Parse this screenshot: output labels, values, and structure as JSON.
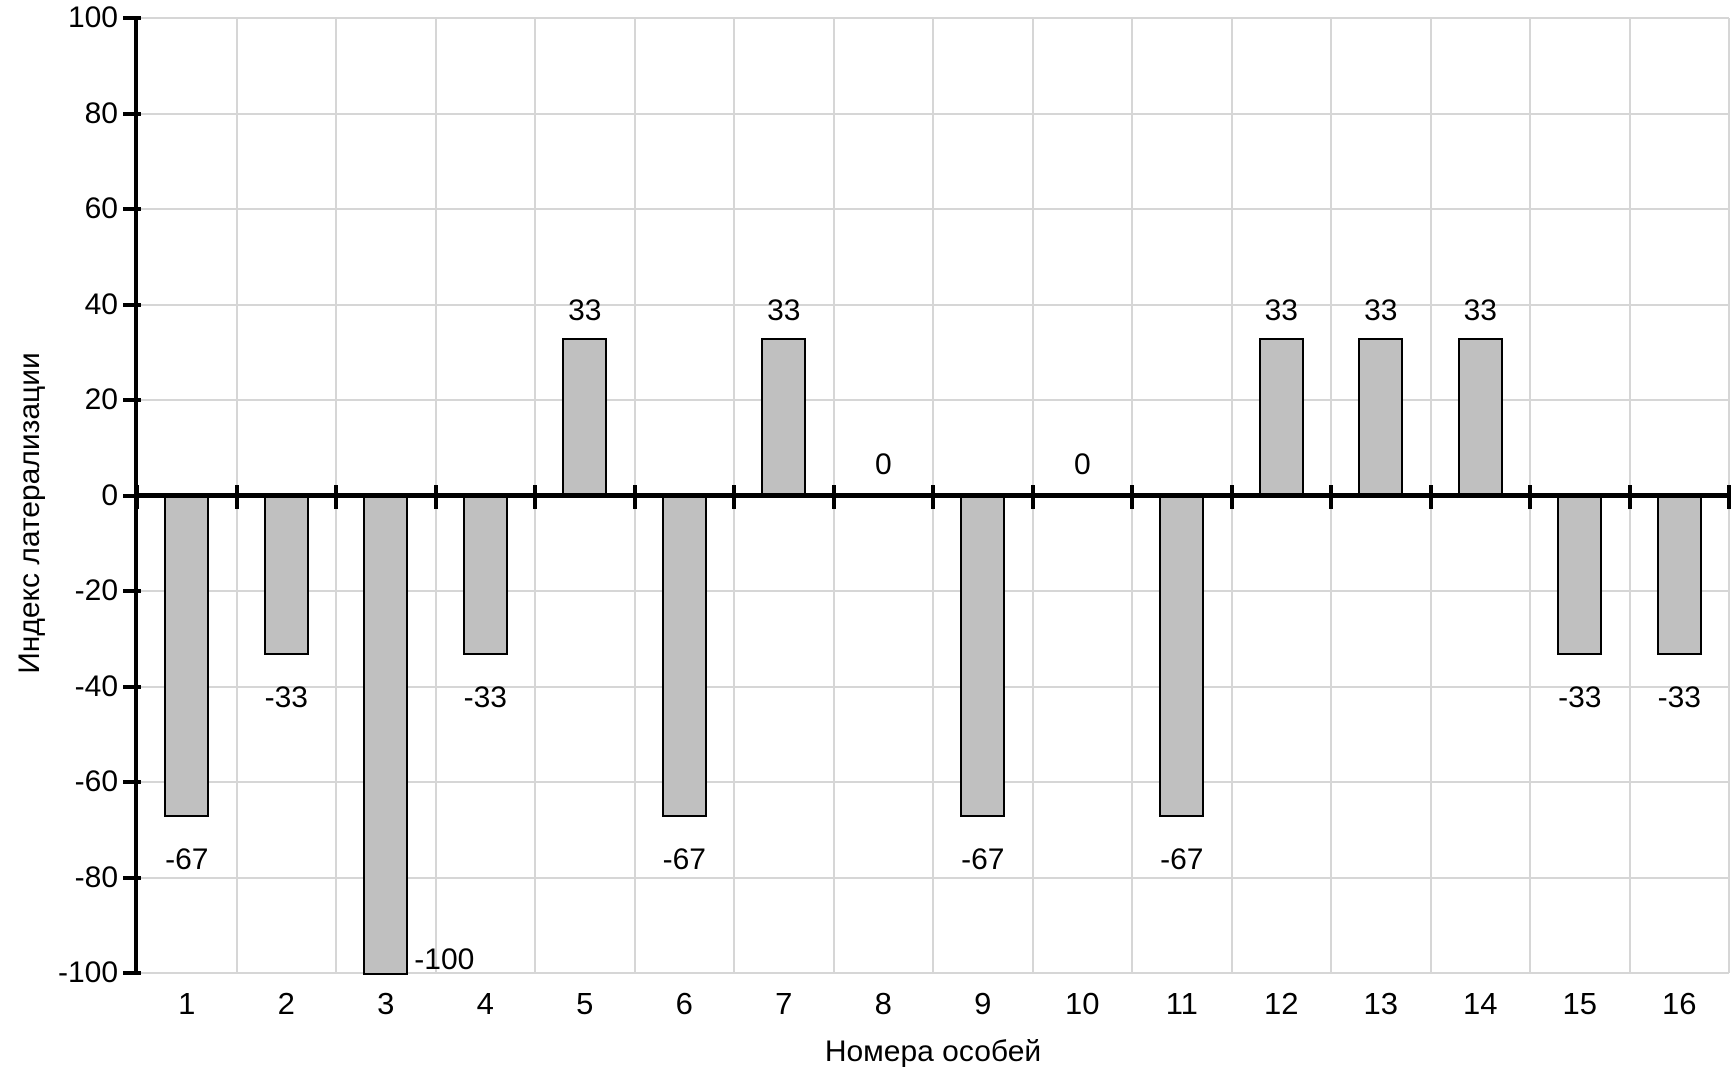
{
  "chart_data": {
    "type": "bar",
    "title": "",
    "xlabel": "Номера особей",
    "ylabel": "Индекс латерализации",
    "categories": [
      "1",
      "2",
      "3",
      "4",
      "5",
      "6",
      "7",
      "8",
      "9",
      "10",
      "11",
      "12",
      "13",
      "14",
      "15",
      "16"
    ],
    "values": [
      -67,
      -33,
      -100,
      -33,
      33,
      -67,
      33,
      0,
      -67,
      0,
      -67,
      33,
      33,
      33,
      -33,
      -33
    ],
    "data_labels": [
      "-67",
      "-33",
      "-100",
      "-33",
      "33",
      "-67",
      "33",
      "0",
      "-67",
      "0",
      "-67",
      "33",
      "33",
      "33",
      "-33",
      "-33"
    ],
    "ylim": [
      -100,
      100
    ],
    "ytick_step": 20,
    "yticks": [
      100,
      80,
      60,
      40,
      20,
      0,
      -20,
      -40,
      -60,
      -80,
      -100
    ],
    "grid": true,
    "legend": "none",
    "colors": {
      "bar_fill": "#c0c0c0",
      "bar_border": "#000000",
      "gridline": "#d6d6d6",
      "axis": "#000000",
      "text": "#000000",
      "background": "#ffffff"
    }
  }
}
